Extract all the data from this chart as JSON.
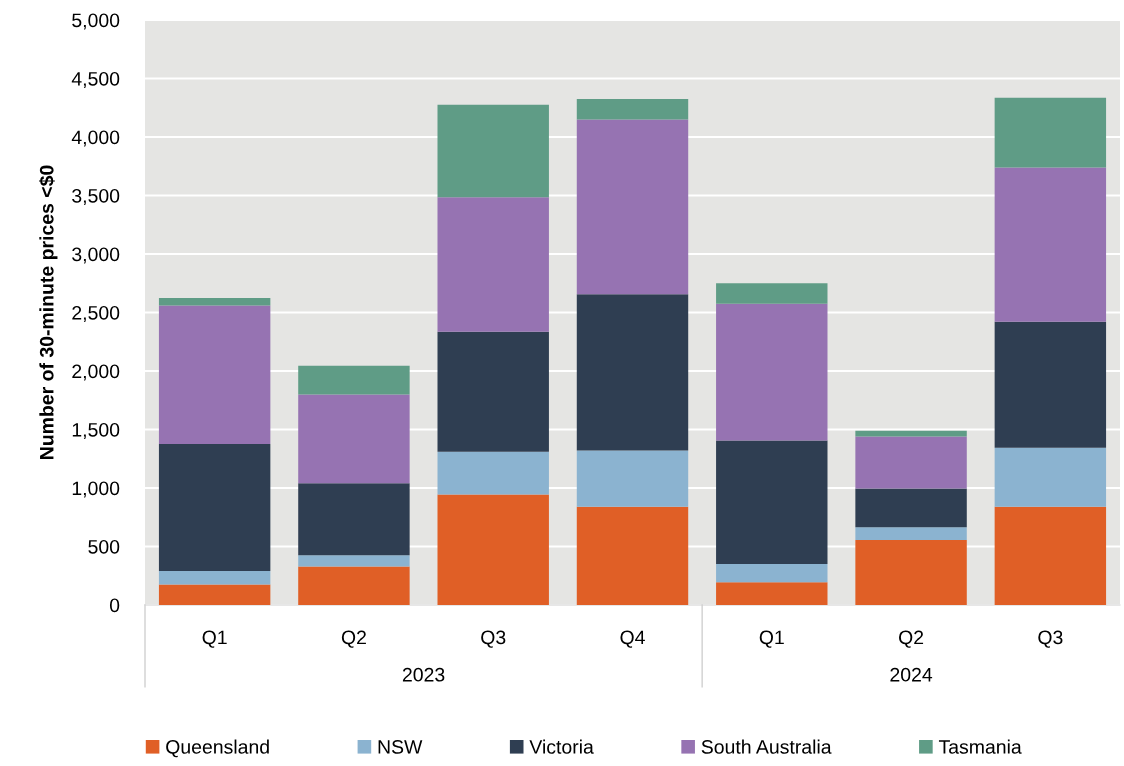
{
  "chart_data": {
    "type": "bar",
    "stacked": true,
    "ylabel": "Number of 30-minute prices <$0",
    "categories": [
      "Q1",
      "Q2",
      "Q3",
      "Q4",
      "Q1",
      "Q2",
      "Q3"
    ],
    "annotations": [
      "2023",
      "2024"
    ],
    "series": [
      {
        "name": "Queensland",
        "color": "#e05f26",
        "values": [
          175,
          330,
          945,
          840,
          195,
          555,
          840
        ]
      },
      {
        "name": "NSW",
        "color": "#8bb3d0",
        "values": [
          115,
          95,
          365,
          480,
          155,
          110,
          505
        ]
      },
      {
        "name": "Victoria",
        "color": "#2f3e52",
        "values": [
          1085,
          615,
          1025,
          1335,
          1055,
          330,
          1075
        ]
      },
      {
        "name": "South Australia",
        "color": "#9673b2",
        "values": [
          1185,
          760,
          1150,
          1495,
          1170,
          445,
          1320
        ]
      },
      {
        "name": "Tasmania",
        "color": "#5f9c86",
        "values": [
          65,
          245,
          790,
          175,
          175,
          50,
          595
        ]
      }
    ],
    "ylim": [
      0,
      5000
    ],
    "yticks": [
      {
        "value": 0,
        "label": "0"
      },
      {
        "value": 500,
        "label": "500"
      },
      {
        "value": 1000,
        "label": "1,000"
      },
      {
        "value": 1500,
        "label": "1,500"
      },
      {
        "value": 2000,
        "label": "2,000"
      },
      {
        "value": 2500,
        "label": "2,500"
      },
      {
        "value": 3000,
        "label": "3,000"
      },
      {
        "value": 3500,
        "label": "3,500"
      },
      {
        "value": 4000,
        "label": "4,000"
      },
      {
        "value": 4500,
        "label": "4,500"
      },
      {
        "value": 5000,
        "label": "5,000"
      }
    ],
    "grid": "y",
    "legend": "bottom"
  }
}
